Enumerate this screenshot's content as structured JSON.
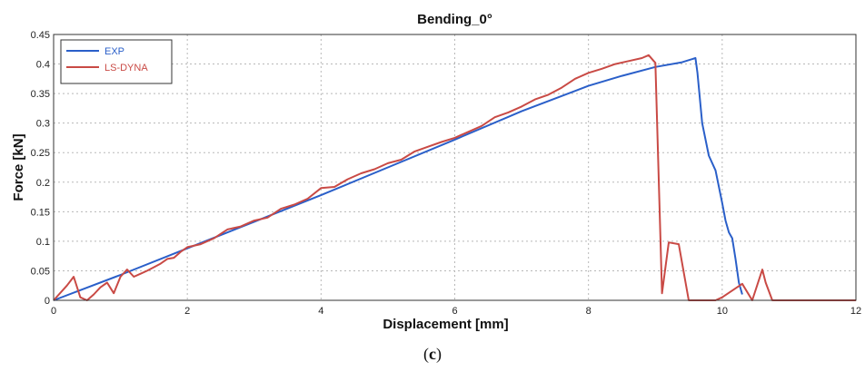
{
  "chart_data": {
    "type": "line",
    "title": "Bending_0°",
    "xlabel": "Displacement [mm]",
    "ylabel": "Force [kN]",
    "xlim": [
      0,
      12
    ],
    "ylim": [
      0,
      0.45
    ],
    "xticks": [
      0,
      2,
      4,
      6,
      8,
      10,
      12
    ],
    "yticks": [
      0,
      0.05,
      0.1,
      0.15,
      0.2,
      0.25,
      0.3,
      0.35,
      0.4,
      0.45
    ],
    "xtick_labels": [
      "0",
      "2",
      "4",
      "6",
      "8",
      "10",
      "12"
    ],
    "ytick_labels": [
      "0",
      "0.05",
      "0.1",
      "0.15",
      "0.2",
      "0.25",
      "0.3",
      "0.35",
      "0.4",
      "0.45"
    ],
    "grid": true,
    "legend_position": "top-left",
    "series": [
      {
        "name": "EXP",
        "color": "#2a5fc9",
        "x": [
          0,
          1,
          2,
          3,
          4,
          5,
          6,
          7,
          8,
          8.5,
          9,
          9.4,
          9.6,
          9.63,
          9.7,
          9.8,
          9.9,
          10.0,
          10.05,
          10.1,
          10.15,
          10.2,
          10.25,
          10.3
        ],
        "y": [
          0,
          0.043,
          0.088,
          0.133,
          0.178,
          0.225,
          0.272,
          0.32,
          0.363,
          0.38,
          0.395,
          0.403,
          0.41,
          0.385,
          0.3,
          0.245,
          0.22,
          0.165,
          0.135,
          0.115,
          0.105,
          0.07,
          0.03,
          0.01
        ]
      },
      {
        "name": "LS-DYNA",
        "color": "#c94a45",
        "x": [
          0,
          0.2,
          0.3,
          0.4,
          0.5,
          0.6,
          0.7,
          0.8,
          0.9,
          1.0,
          1.1,
          1.2,
          1.3,
          1.4,
          1.5,
          1.6,
          1.7,
          1.8,
          1.9,
          2.0,
          2.2,
          2.4,
          2.6,
          2.8,
          3.0,
          3.2,
          3.4,
          3.6,
          3.8,
          4.0,
          4.2,
          4.4,
          4.6,
          4.8,
          5.0,
          5.2,
          5.4,
          5.6,
          5.8,
          6.0,
          6.2,
          6.4,
          6.6,
          6.8,
          7.0,
          7.2,
          7.4,
          7.6,
          7.8,
          8.0,
          8.2,
          8.4,
          8.6,
          8.8,
          8.9,
          9.0,
          9.1,
          9.2,
          9.35,
          9.5,
          9.9,
          10.0,
          10.3,
          10.45,
          10.6,
          10.65,
          10.75,
          12.0
        ],
        "y": [
          0,
          0.025,
          0.04,
          0.005,
          0.0,
          0.01,
          0.022,
          0.03,
          0.012,
          0.04,
          0.052,
          0.04,
          0.045,
          0.05,
          0.056,
          0.062,
          0.07,
          0.072,
          0.082,
          0.09,
          0.095,
          0.105,
          0.12,
          0.125,
          0.135,
          0.14,
          0.155,
          0.162,
          0.172,
          0.19,
          0.192,
          0.205,
          0.215,
          0.222,
          0.232,
          0.238,
          0.252,
          0.26,
          0.268,
          0.275,
          0.285,
          0.295,
          0.31,
          0.318,
          0.328,
          0.34,
          0.348,
          0.36,
          0.375,
          0.385,
          0.392,
          0.4,
          0.405,
          0.41,
          0.415,
          0.402,
          0.012,
          0.098,
          0.095,
          0.0,
          0.0,
          0.005,
          0.028,
          0.0,
          0.052,
          0.03,
          0.0,
          0.0
        ]
      }
    ]
  },
  "caption": {
    "open": "(",
    "label": "c",
    "close": ")"
  }
}
